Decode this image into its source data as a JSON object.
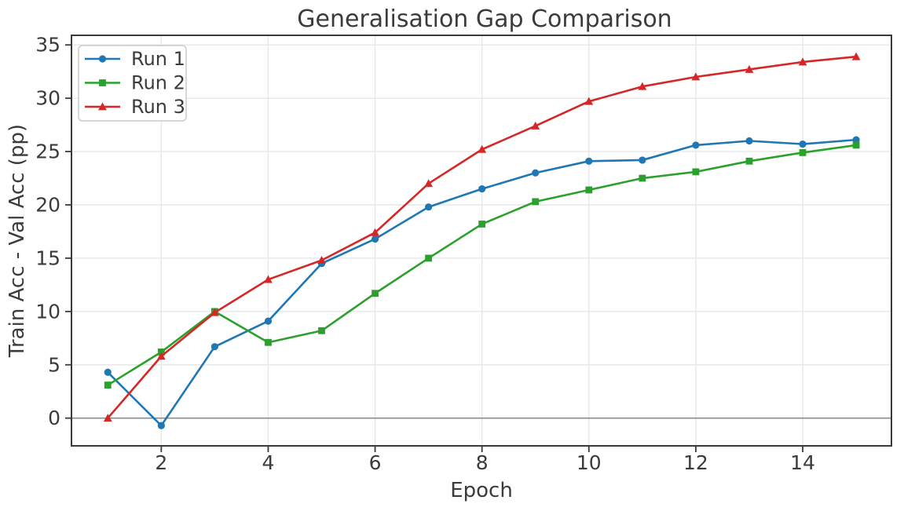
{
  "chart_data": {
    "type": "line",
    "title": "Generalisation Gap Comparison",
    "xlabel": "Epoch",
    "ylabel": "Train Acc - Val Acc (pp)",
    "x": [
      1,
      2,
      3,
      4,
      5,
      6,
      7,
      8,
      9,
      10,
      11,
      12,
      13,
      14,
      15
    ],
    "series": [
      {
        "name": "Run 1",
        "color": "#1f77b4",
        "marker": "circle",
        "values": [
          4.3,
          -0.7,
          6.7,
          9.1,
          14.5,
          16.8,
          19.8,
          21.5,
          23.0,
          24.1,
          24.2,
          25.6,
          26.0,
          25.7,
          26.1
        ]
      },
      {
        "name": "Run 2",
        "color": "#2ca02c",
        "marker": "square",
        "values": [
          3.1,
          6.2,
          10.0,
          7.1,
          8.2,
          11.7,
          15.0,
          18.2,
          20.3,
          21.4,
          22.5,
          23.1,
          24.1,
          24.9,
          25.6
        ]
      },
      {
        "name": "Run 3",
        "color": "#d62728",
        "marker": "triangle",
        "values": [
          0.0,
          5.8,
          9.9,
          13.0,
          14.8,
          17.4,
          22.0,
          25.2,
          27.4,
          29.7,
          31.1,
          32.0,
          32.7,
          33.4,
          33.9
        ]
      }
    ],
    "xticks": [
      2,
      4,
      6,
      8,
      10,
      12,
      14
    ],
    "yticks": [
      0,
      5,
      10,
      15,
      20,
      25,
      30,
      35
    ],
    "xlim": [
      0.32,
      15.66
    ],
    "ylim": [
      -2.6,
      35.9
    ],
    "grid": true,
    "zero_line": true,
    "legend_position": "upper-left",
    "style": {
      "grid_color": "#e7e7e7",
      "zero_line_color": "#8c8c8c",
      "spine_color": "#3a3a3a",
      "text_color": "#3b3b3b",
      "legend_border_color": "#cccccc",
      "background": "#ffffff"
    }
  }
}
